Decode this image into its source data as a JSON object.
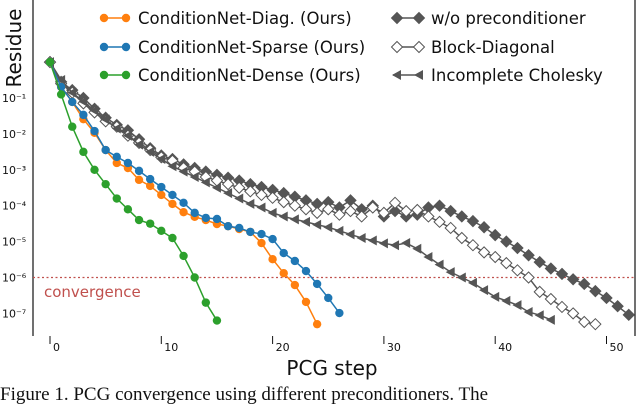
{
  "chart_data": {
    "type": "line",
    "title": "",
    "xlabel": "PCG step",
    "ylabel": "Residue",
    "yscale": "log",
    "xlim": [
      -1,
      53
    ],
    "ylim_log10": [
      -7.5,
      0.6
    ],
    "xticks": [
      "0",
      "10",
      "20",
      "30",
      "40",
      "50"
    ],
    "yticks": [
      {
        "label": "10⁻¹",
        "exp": -1
      },
      {
        "label": "10⁻²",
        "exp": -2
      },
      {
        "label": "10⁻³",
        "exp": -3
      },
      {
        "label": "10⁻⁴",
        "exp": -4
      },
      {
        "label": "10⁻⁵",
        "exp": -5
      },
      {
        "label": "10⁻⁶",
        "exp": -6
      },
      {
        "label": "10⁻⁷",
        "exp": -7
      }
    ],
    "threshold": {
      "label": "convergence",
      "log10_value": -6,
      "color": "#c0504d"
    },
    "series": [
      {
        "name": "ConditionNet-Diag. (Ours)",
        "color": "#ff7f0e",
        "marker": "circle",
        "log10_values": [
          0,
          -0.69,
          -1.11,
          -1.59,
          -1.97,
          -2.45,
          -2.81,
          -2.95,
          -3.28,
          -3.45,
          -3.7,
          -3.95,
          -4.18,
          -4.31,
          -4.4,
          -4.51,
          -4.57,
          -4.65,
          -4.73,
          -5.04,
          -5.49,
          -5.88,
          -6.21,
          -6.68,
          -7.3
        ]
      },
      {
        "name": "ConditionNet-Sparse (Ours)",
        "color": "#1f77b4",
        "marker": "circle",
        "log10_values": [
          0,
          -0.69,
          -1.11,
          -1.47,
          -1.92,
          -2.45,
          -2.64,
          -2.81,
          -3.03,
          -3.26,
          -3.48,
          -3.7,
          -3.92,
          -4.2,
          -4.34,
          -4.37,
          -4.57,
          -4.62,
          -4.73,
          -4.79,
          -4.93,
          -5.32,
          -5.54,
          -5.82,
          -6.18,
          -6.57,
          -6.99
        ]
      },
      {
        "name": "ConditionNet-Dense (Ours)",
        "color": "#2ca02c",
        "marker": "circle",
        "log10_values": [
          0,
          -0.9,
          -1.8,
          -2.5,
          -3.0,
          -3.4,
          -3.8,
          -4.1,
          -4.4,
          -4.5,
          -4.7,
          -4.9,
          -5.4,
          -6.0,
          -6.7,
          -7.2
        ]
      },
      {
        "name": "w/o preconditioner",
        "color": "#555555",
        "marker": "filled-diamond",
        "log10_values": [
          0,
          -0.55,
          -0.78,
          -1.0,
          -1.3,
          -1.55,
          -1.75,
          -1.9,
          -2.15,
          -2.4,
          -2.6,
          -2.7,
          -2.85,
          -2.95,
          -3.05,
          -3.14,
          -3.22,
          -3.3,
          -3.4,
          -3.48,
          -3.56,
          -3.65,
          -3.75,
          -3.85,
          -3.95,
          -3.9,
          -4.05,
          -3.85,
          -4.1,
          -4.0,
          -4.3,
          -4.15,
          -4.3,
          -4.25,
          -4.05,
          -4.0,
          -4.15,
          -4.3,
          -4.43,
          -4.6,
          -4.82,
          -5.0,
          -5.18,
          -5.38,
          -5.57,
          -5.75,
          -5.9,
          -6.05,
          -6.18,
          -6.38,
          -6.57,
          -6.8,
          -7.04
        ]
      },
      {
        "name": "Block-Diagonal",
        "color": "#555555",
        "marker": "hollow-diamond",
        "log10_values": [
          0,
          -0.6,
          -0.85,
          -1.15,
          -1.4,
          -1.65,
          -1.8,
          -2.05,
          -2.25,
          -2.45,
          -2.65,
          -2.75,
          -2.95,
          -3.05,
          -3.2,
          -3.3,
          -3.4,
          -3.5,
          -3.6,
          -3.7,
          -3.78,
          -3.9,
          -4.0,
          -4.1,
          -4.2,
          -4.1,
          -4.25,
          -4.15,
          -4.3,
          -4.05,
          -4.2,
          -3.92,
          -4.15,
          -4.12,
          -4.3,
          -4.45,
          -4.62,
          -4.9,
          -5.1,
          -5.3,
          -5.43,
          -5.6,
          -5.8,
          -6.0,
          -6.4,
          -6.6,
          -6.82,
          -7.0,
          -7.24,
          -7.3
        ]
      },
      {
        "name": "Incomplete Cholesky",
        "color": "#555555",
        "marker": "left-triangle",
        "log10_values": [
          0,
          -0.5,
          -0.85,
          -1.1,
          -1.35,
          -1.6,
          -1.85,
          -2.05,
          -2.3,
          -2.5,
          -2.7,
          -2.9,
          -3.05,
          -3.2,
          -3.35,
          -3.5,
          -3.65,
          -3.8,
          -3.95,
          -4.05,
          -4.2,
          -4.3,
          -4.38,
          -4.45,
          -4.53,
          -4.6,
          -4.7,
          -4.8,
          -4.9,
          -4.97,
          -5.05,
          -5.1,
          -5.04,
          -5.2,
          -5.43,
          -5.64,
          -5.85,
          -6.0,
          -6.15,
          -6.35,
          -6.54,
          -6.65,
          -6.77,
          -6.96,
          -7.05,
          -7.18
        ]
      }
    ],
    "legend_placement": "top"
  },
  "caption": "Figure 1. PCG convergence using different preconditioners. The"
}
